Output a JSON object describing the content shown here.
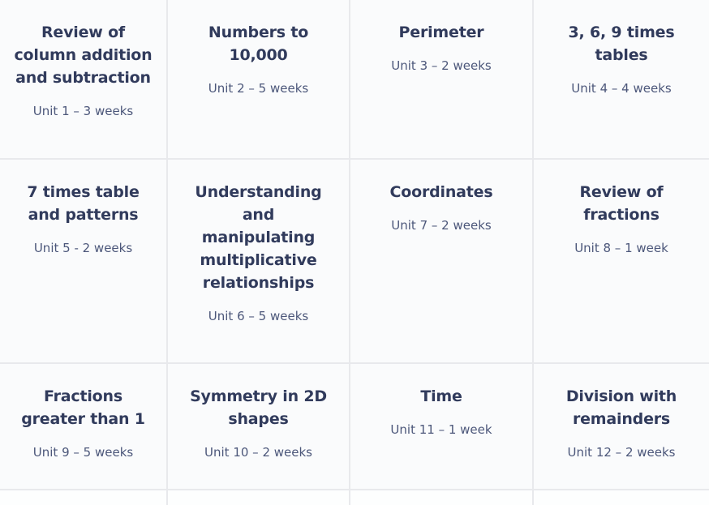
{
  "colors": {
    "cell_background": "#fafbfc",
    "divider": "#e8e9ec",
    "title_text": "#313b5c",
    "schedule_text": "#4c577a",
    "partial_row_background": "#fdfefe"
  },
  "units": [
    {
      "title": "Review of\ncolumn addition\nand subtraction",
      "schedule": "Unit 1 – 3 weeks"
    },
    {
      "title": "Numbers to\n10,000",
      "schedule": "Unit 2 – 5 weeks"
    },
    {
      "title": "Perimeter",
      "schedule": "Unit 3 – 2 weeks"
    },
    {
      "title": "3, 6, 9 times\ntables",
      "schedule": "Unit 4 – 4 weeks"
    },
    {
      "title": "7 times table\nand patterns",
      "schedule": "Unit 5 - 2 weeks"
    },
    {
      "title": "Understanding\nand\nmanipulating\nmultiplicative\nrelationships",
      "schedule": "Unit 6 – 5 weeks"
    },
    {
      "title": "Coordinates",
      "schedule": "Unit 7 – 2 weeks"
    },
    {
      "title": "Review of\nfractions",
      "schedule": "Unit 8 – 1 week"
    },
    {
      "title": "Fractions\ngreater than 1",
      "schedule": "Unit 9 – 5 weeks"
    },
    {
      "title": "Symmetry in 2D\nshapes",
      "schedule": "Unit 10 – 2 weeks"
    },
    {
      "title": "Time",
      "schedule": "Unit 11 – 1 week"
    },
    {
      "title": "Division with\nremainders",
      "schedule": "Unit 12 – 2 weeks"
    }
  ]
}
